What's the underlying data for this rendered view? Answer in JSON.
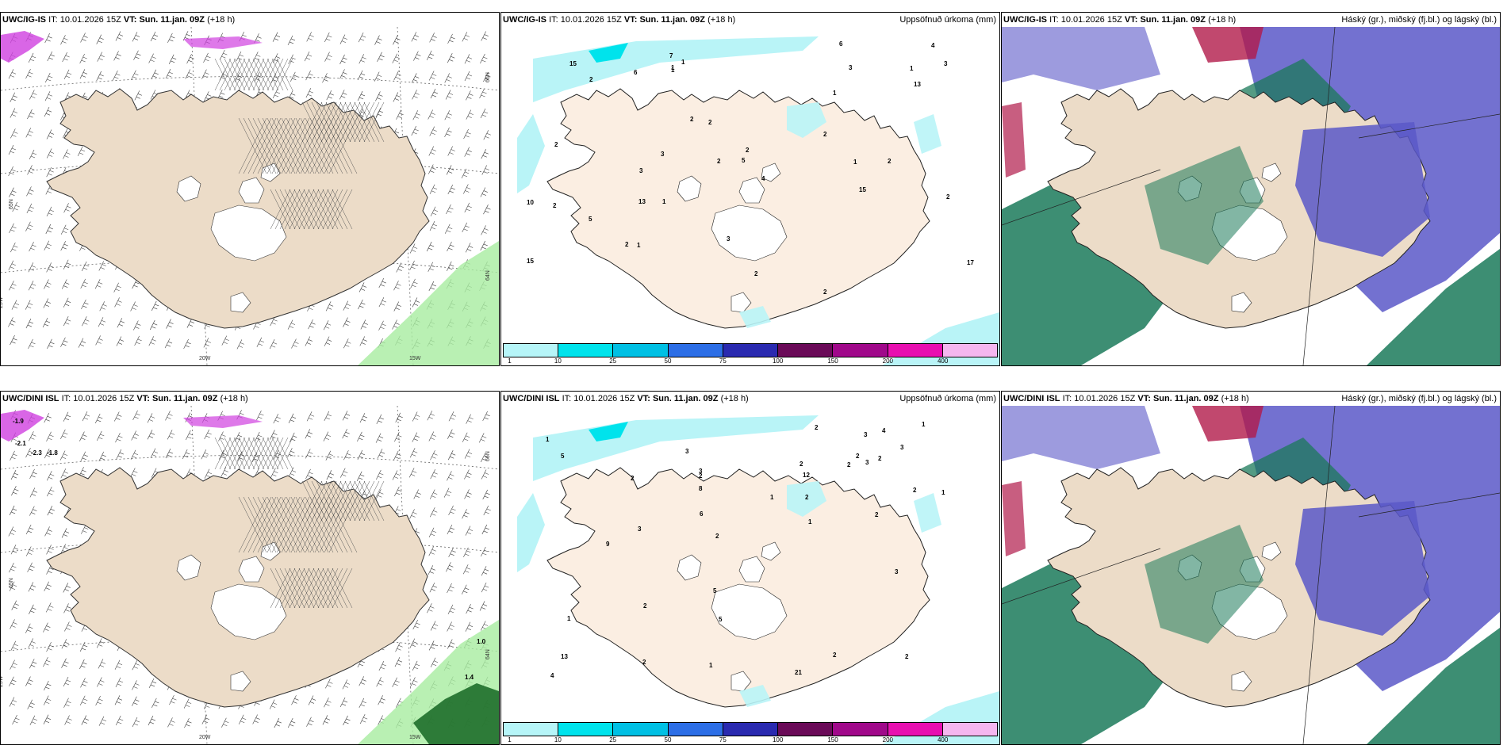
{
  "panels": [
    {
      "model": "UWC/IG-IS",
      "it_label": "IT:",
      "it": "10.01.2026 15Z",
      "vt_label": "VT:",
      "vt": "Sun. 11.jan. 09Z",
      "lead": "(+18 h)",
      "right_title": "",
      "axis_labels": [
        "20W",
        "15W",
        "25W",
        "65N",
        "64N",
        "66N"
      ],
      "contour_labels": []
    },
    {
      "model": "UWC/IG-IS",
      "it_label": "IT:",
      "it": "10.01.2026 15Z",
      "vt_label": "VT:",
      "vt": "Sun. 11.jan. 09Z",
      "lead": "(+18 h)",
      "right_title": "Uppsöfnuð úrkoma (mm)",
      "axis_labels": [],
      "contour_labels": [
        "5",
        "10",
        "15",
        "3",
        "2",
        "13",
        "15",
        "17",
        "15",
        "4",
        "1",
        "2",
        "2",
        "2",
        "5",
        "6",
        "6",
        "7",
        "3",
        "4",
        "3",
        "1",
        "2",
        "1",
        "1",
        "2",
        "2",
        "2",
        "2",
        "1",
        "1",
        "13",
        "2",
        "1",
        "2",
        "2",
        "1",
        "3",
        "3",
        "2"
      ]
    },
    {
      "model": "UWC/IG-IS",
      "it_label": "IT:",
      "it": "10.01.2026 15Z",
      "vt_label": "VT:",
      "vt": "Sun. 11.jan. 09Z",
      "lead": "(+18 h)",
      "right_title": "Háský (gr.), miðský (fj.bl.) og lágský (bl.)",
      "axis_labels": [],
      "contour_labels": []
    },
    {
      "model": "UWC/DINI ISL",
      "it_label": "IT:",
      "it": "10.01.2026 15Z",
      "vt_label": "VT:",
      "vt": "Sun. 11.jan. 09Z",
      "lead": "(+18 h)",
      "right_title": "",
      "axis_labels": [
        "20W",
        "15W",
        "25W",
        "65N",
        "64N",
        "66N"
      ],
      "contour_labels": [
        "-1.9",
        "-2.1",
        "-2.3",
        "-1.8",
        "1.0",
        "1.4"
      ]
    },
    {
      "model": "UWC/DINI ISL",
      "it_label": "IT:",
      "it": "10.01.2026 15Z",
      "vt_label": "VT:",
      "vt": "Sun. 11.jan. 09Z",
      "lead": "(+18 h)",
      "right_title": "Uppsöfnuð úrkoma (mm)",
      "axis_labels": [],
      "contour_labels": [
        "21",
        "8",
        "1",
        "1",
        "13",
        "12",
        "2",
        "1",
        "5",
        "5",
        "3",
        "1",
        "3",
        "2",
        "2",
        "3",
        "1",
        "3",
        "9",
        "4",
        "3",
        "2",
        "2",
        "1",
        "2",
        "2",
        "2",
        "3",
        "2",
        "2",
        "1",
        "2",
        "2",
        "2",
        "4",
        "3",
        "5",
        "6",
        "2",
        "2"
      ]
    },
    {
      "model": "UWC/DINI ISL",
      "it_label": "IT:",
      "it": "10.01.2026 15Z",
      "vt_label": "VT:",
      "vt": "Sun. 11.jan. 09Z",
      "lead": "(+18 h)",
      "right_title": "Háský (gr.), miðský (fj.bl.) og lágský (bl.)",
      "axis_labels": [],
      "contour_labels": []
    }
  ],
  "colorbar": {
    "ticks": [
      "1",
      "10",
      "25",
      "50",
      "75",
      "100",
      "150",
      "200",
      "400"
    ],
    "colors": [
      "#b6f5f8",
      "#00e3ec",
      "#00c0e4",
      "#2c6ee6",
      "#2a2ab0",
      "#6a0a58",
      "#a0088a",
      "#e80fb0",
      "#f5b6ef"
    ]
  },
  "colors": {
    "land": "#ecdcc8",
    "land_precip": "#fbeee2",
    "sea": "#ffffff",
    "precip_light": "#b9f4f7",
    "high_cloud": "#1b7a5a",
    "mid_cloud": "#5b58c8",
    "low_cloud": "#2e70c8",
    "convective": "#b11a4a"
  }
}
